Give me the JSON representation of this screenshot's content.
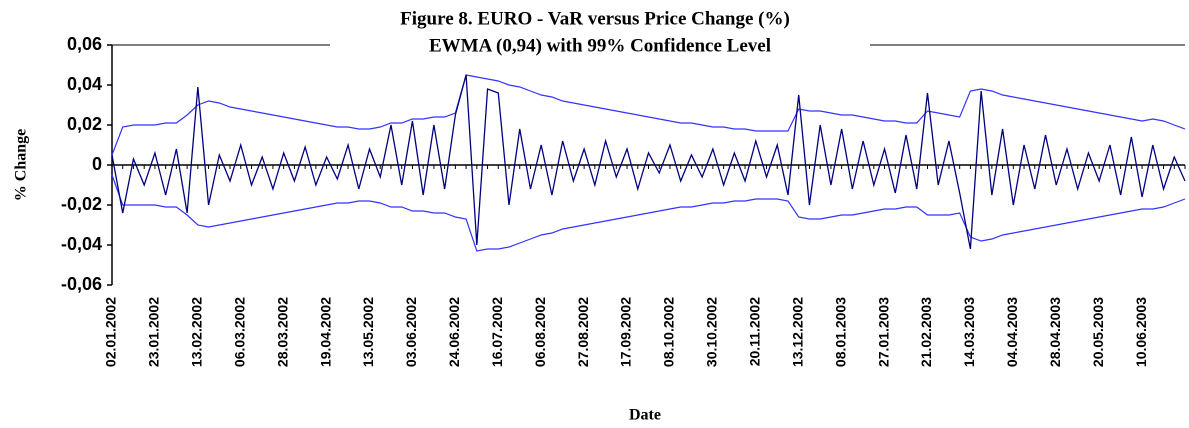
{
  "chart_data": {
    "type": "line",
    "title": "Figure 8. EURO - VaR versus Price Change (%)",
    "subtitle": "EWMA (0,94) with 99% Confidence Level",
    "y_label": "% Change",
    "x_label": "Date",
    "categories": [
      "02.01.2002",
      null,
      null,
      null,
      "23.01.2002",
      null,
      null,
      null,
      "13.02.2002",
      null,
      null,
      null,
      "06.03.2002",
      null,
      null,
      null,
      "28.03.2002",
      null,
      null,
      null,
      "19.04.2002",
      null,
      null,
      null,
      "13.05.2002",
      null,
      null,
      null,
      "03.06.2002",
      null,
      null,
      null,
      "24.06.2002",
      null,
      null,
      null,
      "16.07.2002",
      null,
      null,
      null,
      "06.08.2002",
      null,
      null,
      null,
      "27.08.2002",
      null,
      null,
      null,
      "17.09.2002",
      null,
      null,
      null,
      "08.10.2002",
      null,
      null,
      null,
      "30.10.2002",
      null,
      null,
      null,
      "20.11.2002",
      null,
      null,
      null,
      "13.12.2002",
      null,
      null,
      null,
      "08.01.2003",
      null,
      null,
      null,
      "27.01.2003",
      null,
      null,
      null,
      "21.02.2003",
      null,
      null,
      null,
      "14.03.2003",
      null,
      null,
      null,
      "04.04.2003",
      null,
      null,
      null,
      "28.04.2003",
      null,
      null,
      null,
      "20.05.2003",
      null,
      null,
      null,
      "10.06.2003",
      null,
      null,
      null,
      null
    ],
    "series": [
      {
        "color": "#00007f",
        "values": [
          0.005,
          -0.024,
          0.003,
          -0.01,
          0.006,
          -0.015,
          0.008,
          -0.024,
          0.039,
          -0.02,
          0.005,
          -0.008,
          0.01,
          -0.01,
          0.004,
          -0.012,
          0.006,
          -0.008,
          0.009,
          -0.01,
          0.004,
          -0.007,
          0.01,
          -0.012,
          0.008,
          -0.006,
          0.02,
          -0.01,
          0.022,
          -0.015,
          0.02,
          -0.012,
          0.025,
          0.045,
          -0.04,
          0.038,
          0.036,
          -0.02,
          0.018,
          -0.012,
          0.01,
          -0.015,
          0.012,
          -0.008,
          0.008,
          -0.01,
          0.012,
          -0.006,
          0.008,
          -0.012,
          0.006,
          -0.004,
          0.01,
          -0.008,
          0.005,
          -0.006,
          0.008,
          -0.01,
          0.006,
          -0.008,
          0.012,
          -0.006,
          0.01,
          -0.015,
          0.035,
          -0.02,
          0.02,
          -0.01,
          0.018,
          -0.012,
          0.012,
          -0.01,
          0.008,
          -0.014,
          0.015,
          -0.012,
          0.036,
          -0.01,
          0.012,
          -0.014,
          -0.042,
          0.037,
          -0.015,
          0.018,
          -0.02,
          0.01,
          -0.012,
          0.015,
          -0.01,
          0.008,
          -0.012,
          0.006,
          -0.008,
          0.01,
          -0.015,
          0.014,
          -0.016,
          0.01,
          -0.012,
          0.004,
          -0.008
        ]
      },
      {
        "color": "#3333ff",
        "values": [
          0.005,
          0.019,
          0.02,
          0.02,
          0.02,
          0.021,
          0.021,
          0.025,
          0.03,
          0.032,
          0.031,
          0.029,
          0.028,
          0.027,
          0.026,
          0.025,
          0.024,
          0.023,
          0.022,
          0.021,
          0.02,
          0.019,
          0.019,
          0.018,
          0.018,
          0.019,
          0.021,
          0.021,
          0.023,
          0.023,
          0.024,
          0.024,
          0.026,
          0.045,
          0.044,
          0.043,
          0.042,
          0.04,
          0.039,
          0.037,
          0.035,
          0.034,
          0.032,
          0.031,
          0.03,
          0.029,
          0.028,
          0.027,
          0.026,
          0.025,
          0.024,
          0.023,
          0.022,
          0.021,
          0.021,
          0.02,
          0.019,
          0.019,
          0.018,
          0.018,
          0.017,
          0.017,
          0.017,
          0.017,
          0.028,
          0.027,
          0.027,
          0.026,
          0.025,
          0.025,
          0.024,
          0.023,
          0.022,
          0.022,
          0.021,
          0.021,
          0.027,
          0.026,
          0.025,
          0.024,
          0.037,
          0.038,
          0.037,
          0.035,
          0.034,
          0.033,
          0.032,
          0.031,
          0.03,
          0.029,
          0.028,
          0.027,
          0.026,
          0.025,
          0.024,
          0.023,
          0.022,
          0.023,
          0.022,
          0.02,
          0.018
        ]
      },
      {
        "color": "#3333ff",
        "values": [
          -0.005,
          -0.02,
          -0.02,
          -0.02,
          -0.02,
          -0.021,
          -0.021,
          -0.025,
          -0.03,
          -0.031,
          -0.03,
          -0.029,
          -0.028,
          -0.027,
          -0.026,
          -0.025,
          -0.024,
          -0.023,
          -0.022,
          -0.021,
          -0.02,
          -0.019,
          -0.019,
          -0.018,
          -0.018,
          -0.019,
          -0.021,
          -0.021,
          -0.023,
          -0.023,
          -0.024,
          -0.024,
          -0.026,
          -0.027,
          -0.043,
          -0.042,
          -0.042,
          -0.041,
          -0.039,
          -0.037,
          -0.035,
          -0.034,
          -0.032,
          -0.031,
          -0.03,
          -0.029,
          -0.028,
          -0.027,
          -0.026,
          -0.025,
          -0.024,
          -0.023,
          -0.022,
          -0.021,
          -0.021,
          -0.02,
          -0.019,
          -0.019,
          -0.018,
          -0.018,
          -0.017,
          -0.017,
          -0.017,
          -0.018,
          -0.026,
          -0.027,
          -0.027,
          -0.026,
          -0.025,
          -0.025,
          -0.024,
          -0.023,
          -0.022,
          -0.022,
          -0.021,
          -0.021,
          -0.025,
          -0.025,
          -0.025,
          -0.024,
          -0.036,
          -0.038,
          -0.037,
          -0.035,
          -0.034,
          -0.033,
          -0.032,
          -0.031,
          -0.03,
          -0.029,
          -0.028,
          -0.027,
          -0.026,
          -0.025,
          -0.024,
          -0.023,
          -0.022,
          -0.022,
          -0.021,
          -0.019,
          -0.017
        ]
      }
    ],
    "ylim": [
      -0.06,
      0.06
    ],
    "yticks": [
      {
        "value": 0.06,
        "label": "0,06"
      },
      {
        "value": 0.04,
        "label": "0,04"
      },
      {
        "value": 0.02,
        "label": "0,02"
      },
      0,
      {
        "value": -0.02,
        "label": "-0,02"
      },
      {
        "value": -0.04,
        "label": "-0,04"
      },
      {
        "value": -0.06,
        "label": "-0,06"
      }
    ]
  }
}
